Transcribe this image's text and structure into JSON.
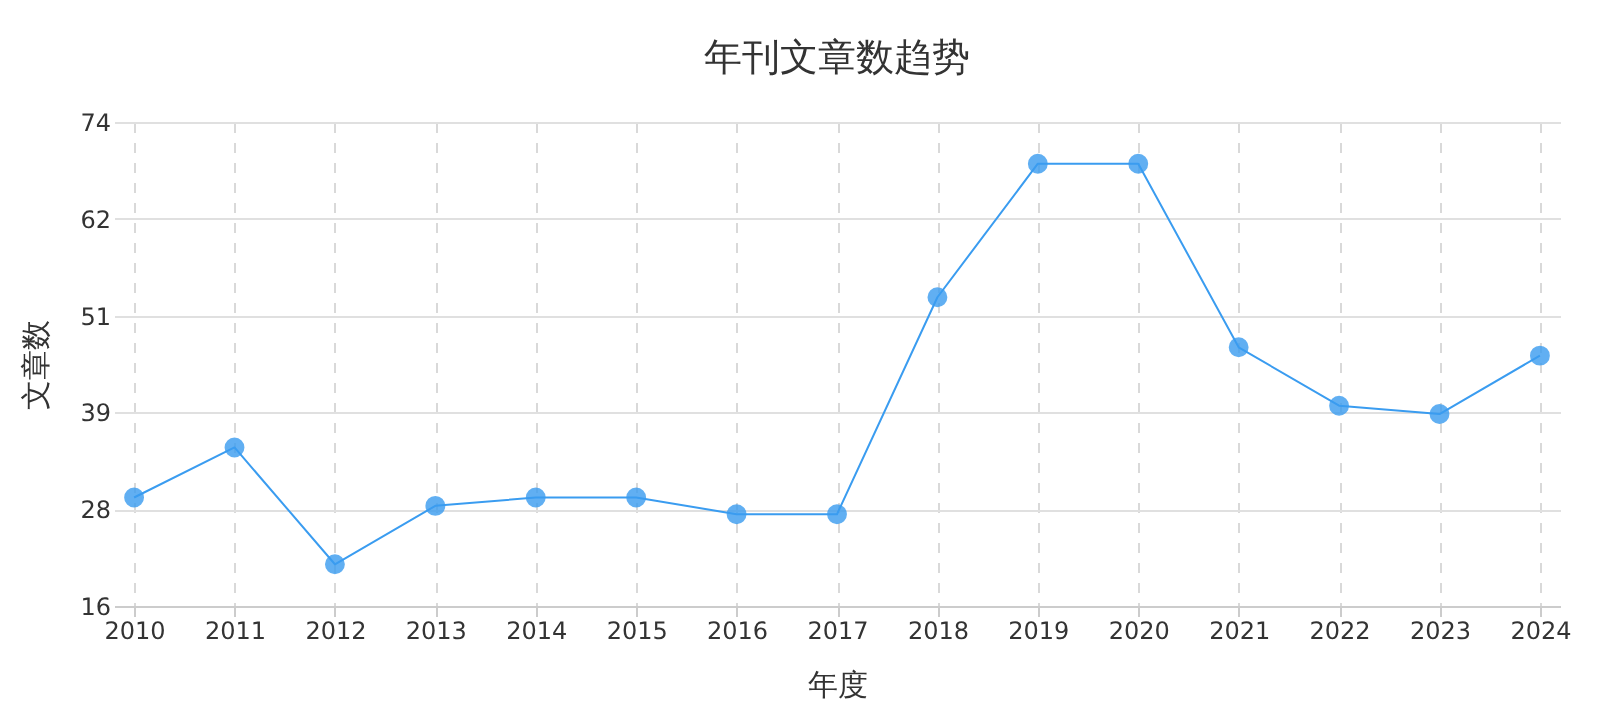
{
  "chart_data": {
    "type": "line",
    "title": "年刊文章数趋势",
    "xlabel": "年度",
    "ylabel": "文章数",
    "categories": [
      "2010",
      "2011",
      "2012",
      "2013",
      "2014",
      "2015",
      "2016",
      "2017",
      "2018",
      "2019",
      "2020",
      "2021",
      "2022",
      "2023",
      "2024"
    ],
    "series": [
      {
        "color": "#3a9cf0",
        "values": [
          29,
          35,
          21,
          28,
          29,
          29,
          27,
          27,
          53,
          69,
          69,
          47,
          40,
          39,
          46
        ]
      }
    ],
    "ylim": [
      16,
      74
    ],
    "yticks": [
      16,
      {
        "value": 27.6,
        "label": "28"
      },
      {
        "value": 39.2,
        "label": "39"
      },
      {
        "value": 50.8,
        "label": "51"
      },
      {
        "value": 62.4,
        "label": "62"
      },
      74
    ],
    "grid": true,
    "marker": "circle",
    "line_style": "solid"
  }
}
